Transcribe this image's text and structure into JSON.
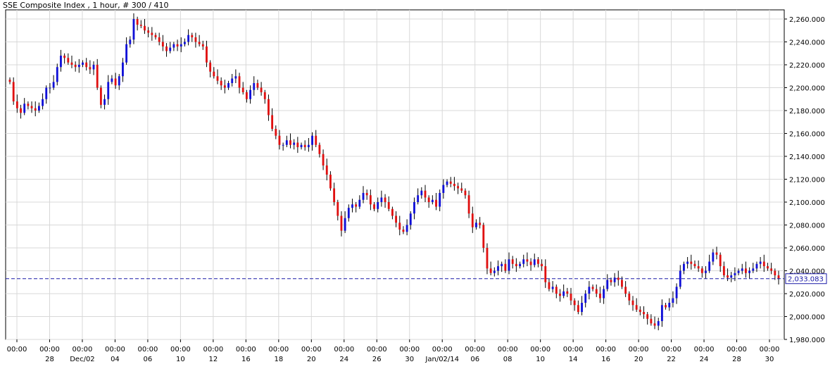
{
  "chart_data": {
    "type": "candlestick",
    "title": "SSE Composite Index , 1 hour, # 300 / 410",
    "ylim": [
      1980,
      2265
    ],
    "yticks": [
      "2,260.000",
      "2,240.000",
      "2,220.000",
      "2,200.000",
      "2,180.000",
      "2,160.000",
      "2,140.000",
      "2,120.000",
      "2,100.000",
      "2,080.000",
      "2,060.000",
      "2,040.000",
      "2,020.000",
      "2,000.000",
      "1,980.000"
    ],
    "ytick_values": [
      2260,
      2240,
      2220,
      2200,
      2180,
      2160,
      2140,
      2120,
      2100,
      2080,
      2060,
      2040,
      2020,
      2000,
      1980
    ],
    "xticks": [
      {
        "time": "00:00",
        "date": ""
      },
      {
        "time": "00:00",
        "date": "28"
      },
      {
        "time": "00:00",
        "date": "Dec/02"
      },
      {
        "time": "00:00",
        "date": "04"
      },
      {
        "time": "00:00",
        "date": "06"
      },
      {
        "time": "00:00",
        "date": "10"
      },
      {
        "time": "00:00",
        "date": "12"
      },
      {
        "time": "00:00",
        "date": "16"
      },
      {
        "time": "00:00",
        "date": "18"
      },
      {
        "time": "00:00",
        "date": "20"
      },
      {
        "time": "00:00",
        "date": "24"
      },
      {
        "time": "00:00",
        "date": "26"
      },
      {
        "time": "00:00",
        "date": "30"
      },
      {
        "time": "00:00",
        "date": "Jan/02/14"
      },
      {
        "time": "00:00",
        "date": "06"
      },
      {
        "time": "00:00",
        "date": "08"
      },
      {
        "time": "00:00",
        "date": "10"
      },
      {
        "time": "00:00",
        "date": "14"
      },
      {
        "time": "00:00",
        "date": "16"
      },
      {
        "time": "00:00",
        "date": "20"
      },
      {
        "time": "00:00",
        "date": "22"
      },
      {
        "time": "00:00",
        "date": "24"
      },
      {
        "time": "00:00",
        "date": "28"
      },
      {
        "time": "00:00",
        "date": "30"
      }
    ],
    "last_price": 2033.083,
    "last_price_label": "2,033.083",
    "closes": [
      2205,
      2188,
      2182,
      2178,
      2186,
      2184,
      2182,
      2180,
      2184,
      2190,
      2200,
      2200,
      2205,
      2218,
      2228,
      2226,
      2222,
      2220,
      2218,
      2220,
      2222,
      2218,
      2216,
      2220,
      2200,
      2185,
      2190,
      2205,
      2208,
      2202,
      2210,
      2222,
      2238,
      2242,
      2260,
      2255,
      2254,
      2250,
      2248,
      2246,
      2244,
      2240,
      2236,
      2232,
      2235,
      2238,
      2236,
      2238,
      2240,
      2246,
      2244,
      2240,
      2238,
      2236,
      2222,
      2214,
      2210,
      2206,
      2202,
      2200,
      2204,
      2208,
      2210,
      2200,
      2196,
      2190,
      2198,
      2204,
      2200,
      2196,
      2190,
      2176,
      2164,
      2158,
      2150,
      2150,
      2154,
      2150,
      2152,
      2148,
      2150,
      2148,
      2150,
      2158,
      2150,
      2142,
      2132,
      2124,
      2112,
      2100,
      2088,
      2075,
      2086,
      2095,
      2098,
      2096,
      2102,
      2108,
      2106,
      2098,
      2094,
      2100,
      2104,
      2100,
      2094,
      2088,
      2082,
      2076,
      2074,
      2080,
      2090,
      2100,
      2106,
      2110,
      2104,
      2100,
      2102,
      2096,
      2108,
      2115,
      2118,
      2116,
      2114,
      2112,
      2110,
      2106,
      2090,
      2078,
      2082,
      2080,
      2060,
      2042,
      2038,
      2040,
      2044,
      2046,
      2040,
      2050,
      2046,
      2044,
      2046,
      2050,
      2048,
      2045,
      2050,
      2046,
      2044,
      2030,
      2024,
      2026,
      2020,
      2018,
      2022,
      2020,
      2014,
      2010,
      2004,
      2012,
      2020,
      2026,
      2024,
      2020,
      2016,
      2024,
      2032,
      2030,
      2034,
      2032,
      2026,
      2020,
      2014,
      2010,
      2006,
      2004,
      2002,
      1998,
      1994,
      1992,
      1996,
      2010,
      2008,
      2012,
      2016,
      2026,
      2040,
      2046,
      2048,
      2046,
      2044,
      2042,
      2038,
      2040,
      2048,
      2056,
      2054,
      2044,
      2036,
      2034,
      2036,
      2038,
      2040,
      2042,
      2038,
      2040,
      2042,
      2046,
      2048,
      2044,
      2042,
      2040,
      2036,
      2033
    ]
  }
}
